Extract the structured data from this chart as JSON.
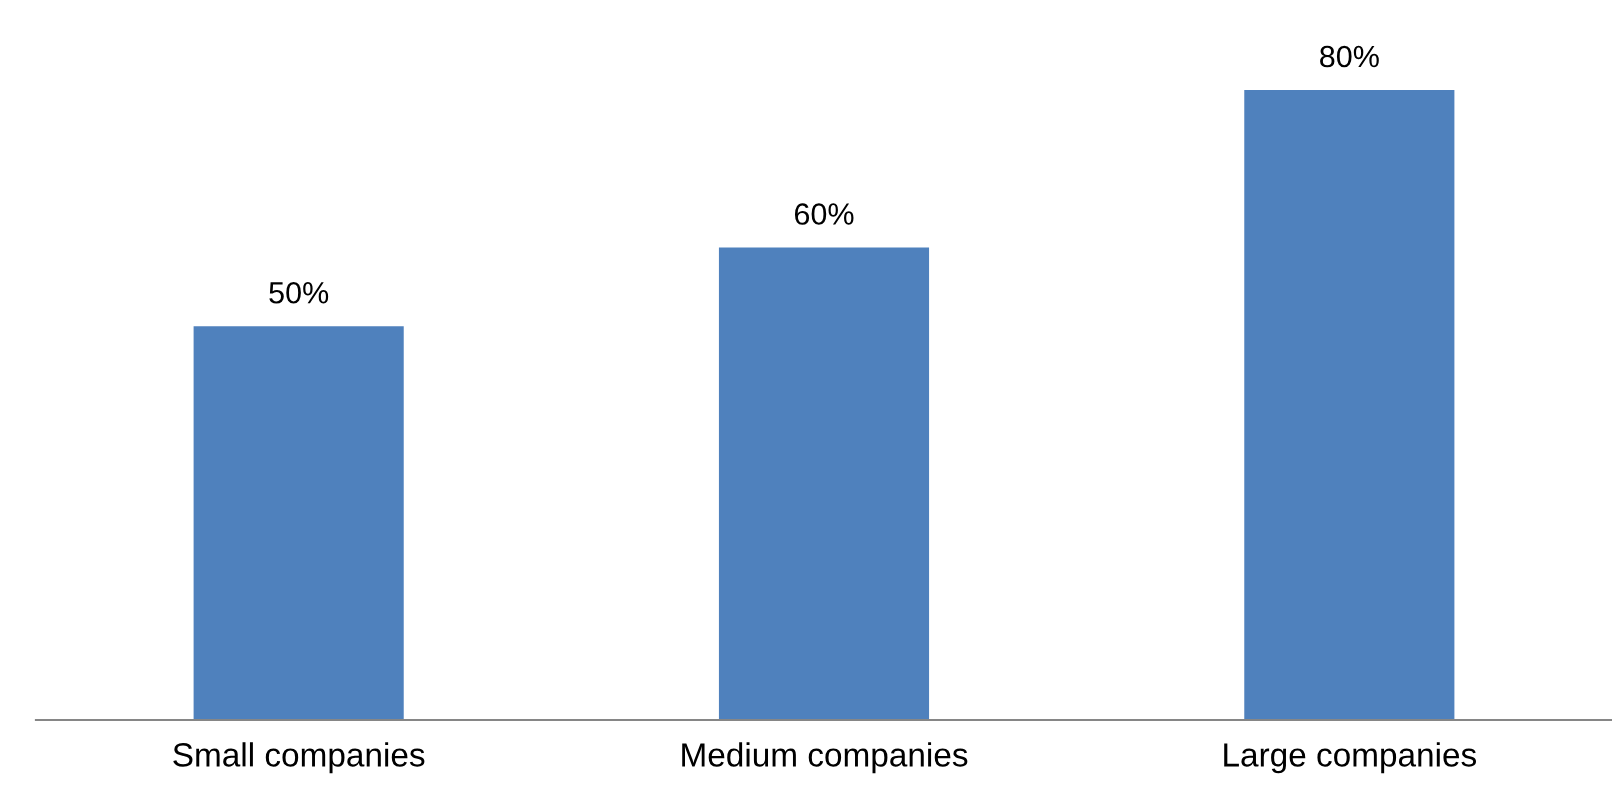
{
  "chart_data": {
    "type": "bar",
    "categories": [
      "Small companies",
      "Medium companies",
      "Large companies"
    ],
    "values": [
      50,
      60,
      80
    ],
    "value_labels": [
      "50%",
      "60%",
      "80%"
    ],
    "color": "#4f81bd",
    "grid": false,
    "legend": false
  }
}
